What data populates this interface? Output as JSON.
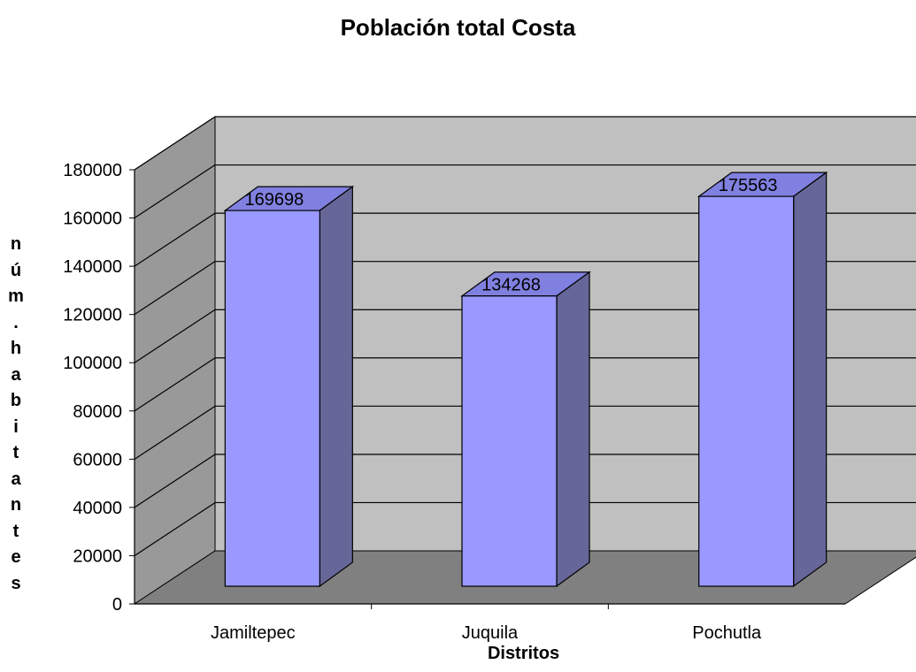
{
  "chart_data": {
    "type": "bar",
    "title": "Población total Costa",
    "xlabel": "Distritos",
    "ylabel": "núm. habitantes",
    "categories": [
      "Jamiltepec",
      "Juquila",
      "Pochutla"
    ],
    "values": [
      169698,
      134268,
      175563
    ],
    "data_labels": [
      "169698",
      "134268",
      "175563"
    ],
    "ylim": [
      0,
      180000
    ],
    "yticks": [
      0,
      20000,
      40000,
      60000,
      80000,
      100000,
      120000,
      140000,
      160000,
      180000
    ],
    "ytick_labels": [
      "0",
      "20000",
      "40000",
      "60000",
      "80000",
      "100000",
      "120000",
      "140000",
      "160000",
      "180000"
    ],
    "grid": true,
    "legend": "none",
    "style": "3d-column",
    "colors": {
      "bar_front": "#9999FF",
      "bar_top": "#8080E0",
      "bar_side": "#666699",
      "back_wall": "#C0C0C0",
      "side_wall": "#999999",
      "floor": "#808080"
    }
  }
}
